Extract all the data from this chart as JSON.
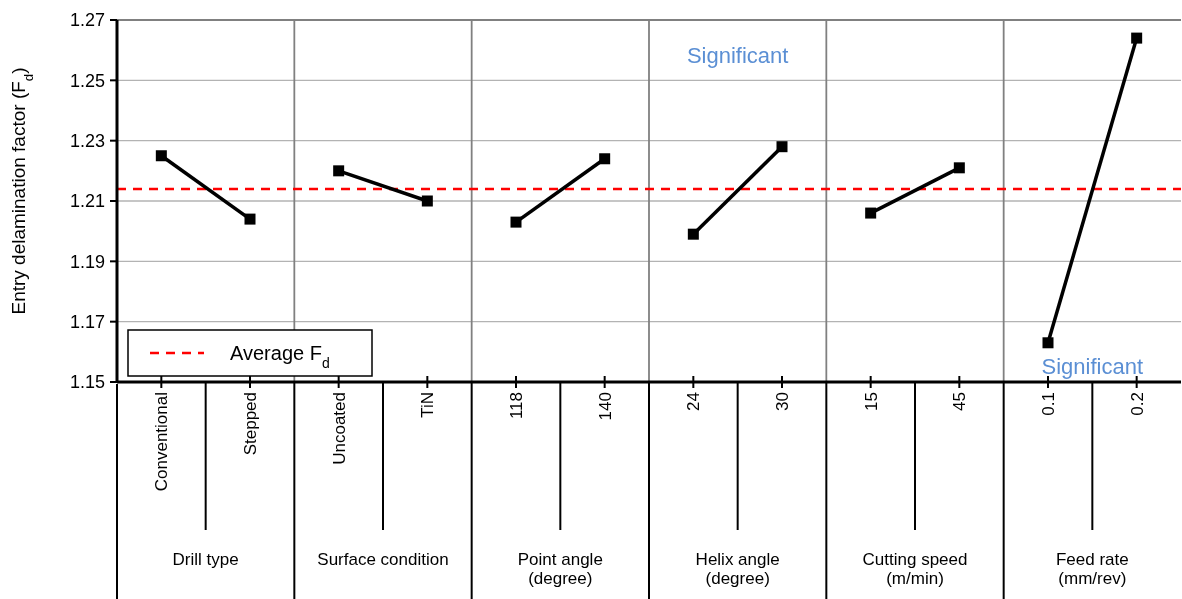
{
  "chart_data": {
    "type": "line",
    "ylabel": "Entry delamination factor (F$_{d}$)",
    "categories": [
      "Conventional",
      "Stepped",
      "Uncoated",
      "TiN",
      "118",
      "140",
      "24",
      "30",
      "15",
      "45",
      "0.1",
      "0.2"
    ],
    "series": [
      {
        "color": "#000000",
        "values": [
          1.225,
          1.204,
          null,
          null,
          null,
          null,
          null,
          null,
          null,
          null,
          null,
          null
        ]
      },
      {
        "color": "#000000",
        "values": [
          null,
          null,
          1.22,
          1.21,
          null,
          null,
          null,
          null,
          null,
          null,
          null,
          null
        ]
      },
      {
        "color": "#000000",
        "values": [
          null,
          null,
          null,
          null,
          1.203,
          1.224,
          null,
          null,
          null,
          null,
          null,
          null
        ]
      },
      {
        "color": "#000000",
        "values": [
          null,
          null,
          null,
          null,
          null,
          null,
          1.199,
          1.228,
          null,
          null,
          null,
          null
        ]
      },
      {
        "color": "#000000",
        "values": [
          null,
          null,
          null,
          null,
          null,
          null,
          null,
          null,
          1.206,
          1.221,
          null,
          null
        ]
      },
      {
        "color": "#000000",
        "values": [
          null,
          null,
          null,
          null,
          null,
          null,
          null,
          null,
          null,
          null,
          1.163,
          1.264
        ]
      }
    ],
    "ylim": [
      1.15,
      1.27
    ],
    "yticks": [
      1.15,
      1.17,
      1.19,
      1.21,
      1.23,
      1.25,
      1.27
    ],
    "ref_lines": [
      {
        "axis": "y",
        "value": 1.214,
        "label": "Average F$_{d}$",
        "color": "#ff0000",
        "line_style": "dashed"
      }
    ],
    "annotations": [
      "Drill type",
      "Surface condition",
      "Point angle (degree)",
      "Helix angle (degree)",
      "Cutting speed (m/min)",
      "Feed rate (mm/rev)",
      "Significant",
      "Significant"
    ],
    "grid": "y",
    "legend": "bottom left",
    "marker": "square",
    "line_style": "solid"
  }
}
